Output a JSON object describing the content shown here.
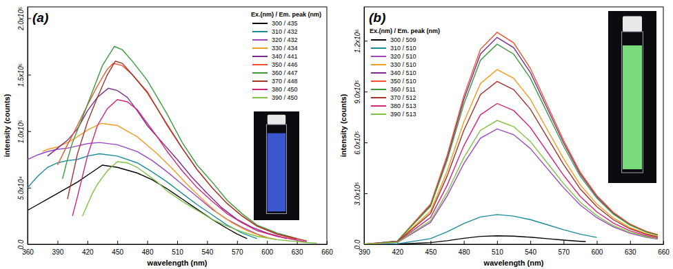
{
  "chart_data": [
    {
      "type": "line",
      "panel_label": "(a)",
      "x_label": "wavelength (nm)",
      "y_label": "intensity (counts)",
      "legend_title": "Ex.(nm) / Em. peak (nm)",
      "legend": "upper right",
      "grid": false,
      "xlim": [
        360,
        660
      ],
      "xticks": [
        360,
        390,
        420,
        450,
        480,
        510,
        540,
        570,
        600,
        630,
        660
      ],
      "ylim": [
        0,
        210000
      ],
      "yticks": [
        {
          "value": 0,
          "label": "0.0"
        },
        {
          "value": 50000,
          "label": "5.0x10⁴"
        },
        {
          "value": 100000,
          "label": "1.0x10⁵"
        },
        {
          "value": 150000,
          "label": "1.5x10⁵"
        },
        {
          "value": 200000,
          "label": "2.0x10⁵"
        }
      ],
      "series": [
        {
          "name": "300 / 435",
          "color": "#000000",
          "x": [
            360,
            370,
            380,
            390,
            400,
            410,
            420,
            435,
            450,
            470,
            485,
            500,
            515,
            530,
            545,
            560,
            570,
            580
          ],
          "values": [
            30000,
            35000,
            40000,
            45000,
            50000,
            55000,
            61000,
            70000,
            68000,
            63000,
            57000,
            49000,
            40000,
            31000,
            22000,
            14000,
            9000,
            5000
          ]
        },
        {
          "name": "310 / 432",
          "color": "#1b8a9c",
          "x": [
            360,
            370,
            380,
            390,
            400,
            410,
            420,
            432,
            450,
            470,
            485,
            500,
            515,
            530,
            545,
            560,
            575,
            590
          ],
          "values": [
            50000,
            60000,
            68000,
            72000,
            74000,
            75000,
            78000,
            80000,
            78000,
            72000,
            64000,
            55000,
            45000,
            35000,
            26000,
            17000,
            10000,
            5000
          ]
        },
        {
          "name": "320 / 432",
          "color": "#9b45c4",
          "x": [
            360,
            370,
            380,
            390,
            400,
            410,
            420,
            432,
            450,
            470,
            485,
            500,
            515,
            530,
            545,
            560,
            575,
            590,
            600
          ],
          "values": [
            75000,
            79000,
            82000,
            84000,
            85000,
            87000,
            89000,
            90000,
            88000,
            82000,
            74000,
            64000,
            53000,
            42000,
            31000,
            22000,
            15000,
            9000,
            6000
          ]
        },
        {
          "name": "330 / 434",
          "color": "#f29b1d",
          "x": [
            375,
            380,
            390,
            400,
            410,
            420,
            434,
            450,
            470,
            490,
            505,
            520,
            535,
            550,
            565,
            580,
            595,
            610
          ],
          "values": [
            82000,
            84000,
            86000,
            90000,
            95000,
            101000,
            107000,
            105000,
            95000,
            80000,
            67000,
            53000,
            40000,
            28000,
            19000,
            12000,
            7000,
            4000
          ]
        },
        {
          "name": "340 / 441",
          "color": "#7a2c8c",
          "x": [
            380,
            390,
            400,
            410,
            420,
            430,
            441,
            450,
            460,
            470,
            480,
            495,
            510,
            525,
            540,
            555,
            570,
            585,
            600,
            620
          ],
          "values": [
            78000,
            85000,
            92000,
            102000,
            118000,
            130000,
            138000,
            136000,
            130000,
            118000,
            105000,
            90000,
            75000,
            59000,
            45000,
            32000,
            22000,
            15000,
            10000,
            5000
          ]
        },
        {
          "name": "350 / 446",
          "color": "#f0512b",
          "x": [
            390,
            400,
            410,
            420,
            430,
            440,
            446,
            455,
            465,
            480,
            490,
            500,
            515,
            530,
            545,
            560,
            575,
            590,
            610,
            630
          ],
          "values": [
            70000,
            88000,
            105000,
            123000,
            140000,
            155000,
            160000,
            158000,
            150000,
            135000,
            120000,
            106000,
            85000,
            66000,
            50000,
            36000,
            25000,
            16000,
            9000,
            4000
          ]
        },
        {
          "name": "360 / 447",
          "color": "#3a9b3c",
          "x": [
            395,
            400,
            405,
            415,
            425,
            435,
            447,
            455,
            465,
            480,
            490,
            500,
            515,
            530,
            545,
            560,
            575,
            590,
            610,
            630
          ],
          "values": [
            58000,
            75000,
            90000,
            112000,
            135000,
            158000,
            175000,
            172000,
            162000,
            145000,
            130000,
            115000,
            90000,
            70000,
            55000,
            39000,
            27000,
            17000,
            10000,
            5000
          ]
        },
        {
          "name": "370 / 448",
          "color": "#a3322b",
          "x": [
            400,
            405,
            410,
            420,
            430,
            440,
            448,
            455,
            465,
            480,
            490,
            500,
            515,
            530,
            545,
            560,
            575,
            590,
            610,
            640
          ],
          "values": [
            40000,
            60000,
            80000,
            108000,
            130000,
            150000,
            162000,
            160000,
            150000,
            134000,
            120000,
            105000,
            85000,
            66000,
            50000,
            36000,
            25000,
            16000,
            9000,
            3000
          ]
        },
        {
          "name": "380 / 450",
          "color": "#d4237c",
          "x": [
            405,
            410,
            415,
            420,
            430,
            440,
            450,
            460,
            470,
            490,
            500,
            515,
            530,
            545,
            560,
            575,
            590,
            610,
            640
          ],
          "values": [
            25000,
            42000,
            60000,
            78000,
            105000,
            120000,
            128000,
            126000,
            119000,
            95000,
            82000,
            65000,
            50000,
            38000,
            27000,
            19000,
            12000,
            7000,
            2000
          ]
        },
        {
          "name": "390 / 450",
          "color": "#7cc242",
          "x": [
            415,
            420,
            425,
            430,
            440,
            450,
            460,
            470,
            490,
            500,
            515,
            530,
            545,
            560,
            575,
            590,
            610,
            640,
            650
          ],
          "values": [
            25000,
            35000,
            45000,
            53000,
            65000,
            73000,
            72000,
            68000,
            55000,
            47000,
            38000,
            30000,
            22000,
            16000,
            11000,
            7000,
            4000,
            1500,
            1000
          ]
        }
      ]
    },
    {
      "type": "line",
      "panel_label": "(b)",
      "x_label": "wavelength (nm)",
      "y_label": "intensity (counts)",
      "legend_title": "Ex.(nm) / Em. peak (nm)",
      "legend": "upper left",
      "grid": false,
      "xlim": [
        390,
        660
      ],
      "xticks": [
        390,
        420,
        450,
        480,
        510,
        540,
        570,
        600,
        630,
        660
      ],
      "ylim": [
        0,
        1400000
      ],
      "yticks": [
        {
          "value": 0,
          "label": "0.0"
        },
        {
          "value": 300000,
          "label": "3.0x10⁵"
        },
        {
          "value": 600000,
          "label": "6.0x10⁵"
        },
        {
          "value": 900000,
          "label": "9.0x10⁵"
        },
        {
          "value": 1200000,
          "label": "1.2x10⁶"
        }
      ],
      "series": [
        {
          "name": "300 / 509",
          "color": "#000000",
          "x": [
            390,
            420,
            450,
            465,
            480,
            495,
            510,
            525,
            540,
            555,
            570,
            585,
            590
          ],
          "values": [
            0,
            750,
            9500,
            21000,
            35000,
            46000,
            50000,
            47500,
            41500,
            33000,
            24500,
            17000,
            15000
          ]
        },
        {
          "name": "310 / 510",
          "color": "#1b8a9c",
          "x": [
            390,
            420,
            450,
            465,
            480,
            495,
            510,
            525,
            540,
            555,
            570,
            585,
            600
          ],
          "values": [
            0,
            2600,
            33000,
            73500,
            122500,
            161000,
            175000,
            166000,
            145000,
            115500,
            86000,
            59500,
            40000
          ]
        },
        {
          "name": "320 / 510",
          "color": "#9b45c4",
          "x": [
            390,
            420,
            450,
            465,
            480,
            495,
            510,
            525,
            540,
            555,
            570,
            585,
            600,
            615,
            630,
            645,
            655
          ],
          "values": [
            0,
            10200,
            129000,
            285600,
            476000,
            625600,
            680000,
            646000,
            564400,
            448800,
            333200,
            231200,
            156400,
            102000,
            64600,
            40800,
            30600
          ]
        },
        {
          "name": "330 / 510",
          "color": "#f29b1d",
          "x": [
            390,
            420,
            450,
            465,
            480,
            495,
            510,
            525,
            540,
            555,
            570,
            585,
            600,
            615,
            630,
            645,
            655
          ],
          "values": [
            0,
            15450,
            195700,
            432600,
            721000,
            947600,
            1030000,
            978500,
            854900,
            679800,
            504700,
            350200,
            236900,
            154500,
            97850,
            61800,
            46350
          ]
        },
        {
          "name": "340 / 510",
          "color": "#7a2c8c",
          "x": [
            390,
            420,
            450,
            465,
            480,
            495,
            510,
            525,
            540,
            555,
            570,
            585,
            600,
            615,
            630,
            645,
            655
          ],
          "values": [
            0,
            18300,
            231800,
            512400,
            854000,
            1122400,
            1220000,
            1159000,
            1012600,
            805200,
            597800,
            414800,
            280600,
            183000,
            115900,
            73200,
            54900
          ]
        },
        {
          "name": "350 / 510",
          "color": "#f0512b",
          "x": [
            390,
            420,
            450,
            465,
            480,
            495,
            510,
            525,
            540,
            555,
            570,
            585,
            600,
            615,
            630,
            645,
            655
          ],
          "values": [
            0,
            18750,
            237500,
            525000,
            875000,
            1150000,
            1250000,
            1187500,
            1037500,
            825000,
            612500,
            425000,
            287500,
            187500,
            118750,
            75000,
            56250
          ]
        },
        {
          "name": "360 / 511",
          "color": "#3a9b3c",
          "x": [
            390,
            420,
            450,
            465,
            480,
            495,
            510,
            525,
            540,
            555,
            570,
            585,
            600,
            615,
            630,
            645,
            655
          ],
          "values": [
            0,
            17700,
            224200,
            495600,
            826000,
            1085600,
            1180000,
            1121000,
            979400,
            778800,
            578200,
            401200,
            271400,
            177000,
            112100,
            70800,
            53100
          ]
        },
        {
          "name": "370 / 512",
          "color": "#a3322b",
          "x": [
            390,
            420,
            450,
            465,
            480,
            495,
            510,
            525,
            540,
            555,
            570,
            585,
            600,
            615,
            630,
            645,
            655
          ],
          "values": [
            0,
            14400,
            182400,
            403200,
            672000,
            883200,
            960000,
            912000,
            796800,
            633600,
            470400,
            326400,
            220800,
            144000,
            91200,
            57600,
            43200
          ]
        },
        {
          "name": "380 / 513",
          "color": "#d4237c",
          "x": [
            390,
            420,
            450,
            465,
            480,
            495,
            510,
            525,
            540,
            555,
            570,
            585,
            600,
            615,
            630,
            645,
            655
          ],
          "values": [
            0,
            12450,
            157700,
            348600,
            581000,
            763600,
            830000,
            788500,
            688900,
            547800,
            406700,
            282200,
            190900,
            124500,
            78850,
            49800,
            37350
          ]
        },
        {
          "name": "390 / 513",
          "color": "#7cc242",
          "x": [
            390,
            420,
            450,
            465,
            480,
            495,
            510,
            525,
            540,
            555,
            570,
            585,
            600,
            615,
            630,
            645,
            655
          ],
          "values": [
            0,
            10950,
            138700,
            306600,
            511000,
            671600,
            730000,
            693500,
            605900,
            481800,
            357700,
            248200,
            167900,
            109500,
            69350,
            43800,
            32850
          ]
        }
      ]
    }
  ]
}
